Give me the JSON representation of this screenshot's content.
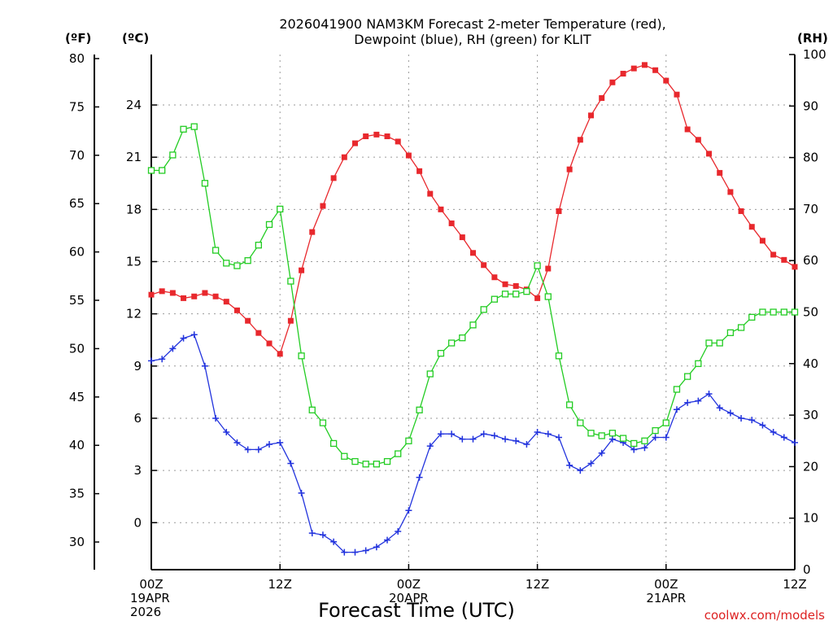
{
  "chart_data": {
    "type": "line",
    "title_lines": [
      "2026041900 NAM3KM Forecast 2-meter Temperature (red),",
      "Dewpoint (blue), RH (green) for KLIT"
    ],
    "xlabel": "Forecast Time (UTC)",
    "credit": "coolwx.com/models",
    "units": {
      "fahrenheit": "(ºF)",
      "celsius": "(ºC)",
      "rh": "(RH)"
    },
    "x_hours": [
      0,
      1,
      2,
      3,
      4,
      5,
      6,
      7,
      8,
      9,
      10,
      11,
      12,
      13,
      14,
      15,
      16,
      17,
      18,
      19,
      20,
      21,
      22,
      23,
      24,
      25,
      26,
      27,
      28,
      29,
      30,
      31,
      32,
      33,
      34,
      35,
      36,
      37,
      38,
      39,
      40,
      41,
      42,
      43,
      44,
      45,
      46,
      47,
      48,
      49,
      50,
      51,
      52,
      53,
      54,
      55,
      56,
      57,
      58,
      59,
      60
    ],
    "xlim": [
      0,
      60
    ],
    "x_ticks": [
      {
        "hour": 0,
        "lines": [
          "00Z",
          "19APR",
          "2026"
        ]
      },
      {
        "hour": 12,
        "lines": [
          "12Z"
        ]
      },
      {
        "hour": 24,
        "lines": [
          "00Z",
          "20APR"
        ]
      },
      {
        "hour": 36,
        "lines": [
          "12Z"
        ]
      },
      {
        "hour": 48,
        "lines": [
          "00Z",
          "21APR"
        ]
      },
      {
        "hour": 60,
        "lines": [
          "12Z"
        ]
      }
    ],
    "celsius_axis": {
      "ylim": [
        -2.7,
        26.9
      ],
      "ticks": [
        0,
        3,
        6,
        9,
        12,
        15,
        18,
        21,
        24
      ]
    },
    "fahrenheit_axis": {
      "ticks": [
        30,
        35,
        40,
        45,
        50,
        55,
        60,
        65,
        70,
        75,
        80
      ]
    },
    "rh_axis": {
      "ylim": [
        0,
        100
      ],
      "ticks": [
        0,
        10,
        20,
        30,
        40,
        50,
        60,
        70,
        80,
        90,
        100
      ]
    },
    "grid": true,
    "series": [
      {
        "name": "2-meter Temperature",
        "units": "°C",
        "axis": "celsius",
        "color": "#e8282d",
        "marker": "filled-square",
        "values": [
          13.1,
          13.3,
          13.2,
          12.9,
          13.0,
          13.2,
          13.0,
          12.7,
          12.2,
          11.6,
          10.9,
          10.3,
          9.7,
          11.6,
          14.5,
          16.7,
          18.2,
          19.8,
          21.0,
          21.8,
          22.2,
          22.3,
          22.2,
          21.9,
          21.1,
          20.2,
          18.9,
          18.0,
          17.2,
          16.4,
          15.5,
          14.8,
          14.1,
          13.7,
          13.6,
          13.4,
          12.9,
          14.6,
          17.9,
          20.3,
          22.0,
          23.4,
          24.4,
          25.3,
          25.8,
          26.1,
          26.3,
          26.0,
          25.4,
          24.6,
          22.6,
          22.0,
          21.2,
          20.1,
          19.0,
          17.9,
          17.0,
          16.2,
          15.4,
          15.1,
          14.7
        ]
      },
      {
        "name": "Dewpoint",
        "units": "°C",
        "axis": "celsius",
        "color": "#2233dd",
        "marker": "plus",
        "values": [
          9.3,
          9.4,
          10.0,
          10.6,
          10.8,
          9.0,
          6.0,
          5.2,
          4.6,
          4.2,
          4.2,
          4.5,
          4.6,
          3.4,
          1.7,
          -0.6,
          -0.7,
          -1.1,
          -1.7,
          -1.7,
          -1.6,
          -1.4,
          -1.0,
          -0.5,
          0.7,
          2.6,
          4.4,
          5.1,
          5.1,
          4.8,
          4.8,
          5.1,
          5.0,
          4.8,
          4.7,
          4.5,
          5.2,
          5.1,
          4.9,
          3.3,
          3.0,
          3.4,
          4.0,
          4.8,
          4.6,
          4.2,
          4.3,
          4.9,
          4.9,
          6.5,
          6.9,
          7.0,
          7.4,
          6.6,
          6.3,
          6.0,
          5.9,
          5.6,
          5.2,
          4.9,
          4.6
        ]
      },
      {
        "name": "RH",
        "units": "%",
        "axis": "rh",
        "color": "#22cc22",
        "marker": "open-square",
        "values": [
          77.5,
          77.5,
          80.5,
          85.5,
          86.0,
          75.0,
          62.0,
          59.5,
          59.0,
          60.0,
          63.0,
          67.0,
          70.0,
          56.0,
          41.5,
          31.0,
          28.5,
          24.5,
          22.0,
          21.0,
          20.5,
          20.5,
          21.0,
          22.5,
          25.0,
          31.0,
          38.0,
          42.0,
          44.0,
          45.0,
          47.5,
          50.5,
          52.5,
          53.5,
          53.5,
          54.0,
          59.0,
          53.0,
          41.5,
          32.0,
          28.5,
          26.5,
          26.0,
          26.5,
          25.5,
          24.5,
          25.0,
          27.0,
          28.5,
          35.0,
          37.5,
          40.0,
          44.0,
          44.0,
          46.0,
          47.0,
          49.0,
          50.0,
          50.0,
          50.0,
          50.0
        ]
      }
    ]
  }
}
